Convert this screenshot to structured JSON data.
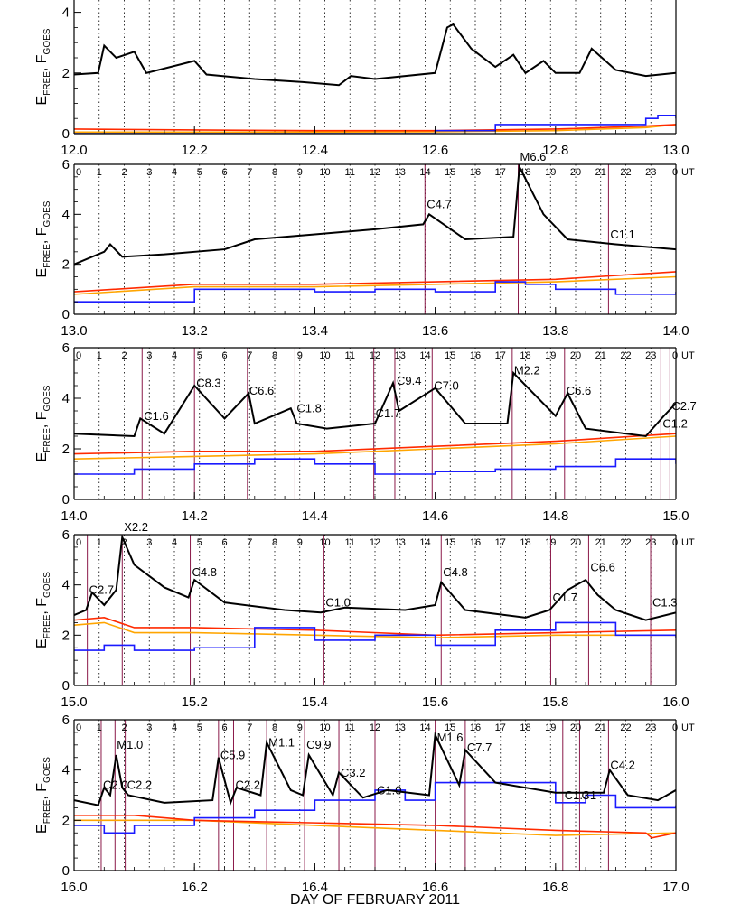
{
  "colors": {
    "efree": "#000000",
    "goes_red": "#ff2a00",
    "goes_orange": "#ffa500",
    "goes_blue": "#1a1aff",
    "flare_line": "#8b1a4a",
    "grid": "#000000"
  },
  "chart_data": [
    {
      "type": "line",
      "xlim": [
        12.0,
        13.0
      ],
      "ylim": [
        0,
        5
      ],
      "ylabel": "E_FREE, F_GOES",
      "xticks": [
        "12.0",
        "12.2",
        "12.4",
        "12.6",
        "12.8",
        "13.0"
      ],
      "yticks": [
        "0",
        "2",
        "4"
      ],
      "hour_labels": [],
      "flares": [],
      "series": [
        {
          "key": "black",
          "x": [
            12.0,
            12.04,
            12.05,
            12.07,
            12.1,
            12.12,
            12.2,
            12.22,
            12.3,
            12.38,
            12.44,
            12.46,
            12.5,
            12.6,
            12.62,
            12.63,
            12.66,
            12.7,
            12.73,
            12.75,
            12.78,
            12.8,
            12.84,
            12.86,
            12.9,
            12.95,
            13.0
          ],
          "values": [
            1.95,
            2.0,
            2.9,
            2.5,
            2.7,
            2.0,
            2.4,
            1.95,
            1.8,
            1.7,
            1.6,
            1.9,
            1.8,
            2.0,
            3.5,
            3.6,
            2.8,
            2.2,
            2.6,
            2.0,
            2.4,
            2.0,
            2.0,
            2.8,
            2.1,
            1.9,
            2.0
          ]
        },
        {
          "key": "red",
          "x": [
            12.0,
            12.2,
            12.4,
            12.6,
            12.8,
            12.95,
            13.0
          ],
          "values": [
            0.15,
            0.12,
            0.1,
            0.1,
            0.15,
            0.25,
            0.3
          ]
        },
        {
          "key": "orange",
          "x": [
            12.0,
            12.2,
            12.4,
            12.6,
            12.8,
            12.95,
            13.0
          ],
          "values": [
            0.05,
            0.05,
            0.05,
            0.06,
            0.1,
            0.2,
            0.3
          ]
        },
        {
          "key": "blue",
          "x": [
            12.0,
            12.2,
            12.4,
            12.6,
            12.7,
            12.8,
            12.95,
            12.97,
            13.0
          ],
          "values": [
            0.0,
            0.0,
            0.0,
            0.1,
            0.3,
            0.3,
            0.5,
            0.6,
            0.5
          ]
        }
      ]
    },
    {
      "type": "line",
      "xlim": [
        13.0,
        14.0
      ],
      "ylim": [
        0,
        6
      ],
      "ylabel": "E_FREE, F_GOES",
      "xticks": [
        "13.0",
        "13.2",
        "13.4",
        "13.6",
        "13.8",
        "14.0"
      ],
      "yticks": [
        "0",
        "2",
        "4",
        "6"
      ],
      "hour_labels": [
        "0",
        "1",
        "2",
        "3",
        "4",
        "5",
        "6",
        "7",
        "8",
        "9",
        "10",
        "11",
        "12",
        "13",
        "14",
        "15",
        "16",
        "17",
        "18",
        "19",
        "20",
        "21",
        "22",
        "23",
        "0"
      ],
      "ut_label": "UT",
      "flares": [
        {
          "x": 13.583,
          "label": "C4.7",
          "ly": 4.1
        },
        {
          "x": 13.738,
          "label": "M6.6",
          "ly": 6.0
        },
        {
          "x": 13.888,
          "label": "C1.1",
          "ly": 2.9
        }
      ],
      "series": [
        {
          "key": "black",
          "x": [
            13.0,
            13.05,
            13.06,
            13.08,
            13.15,
            13.25,
            13.3,
            13.4,
            13.5,
            13.58,
            13.59,
            13.65,
            13.73,
            13.74,
            13.78,
            13.82,
            13.9,
            14.0
          ],
          "values": [
            2.0,
            2.5,
            2.8,
            2.3,
            2.4,
            2.6,
            3.0,
            3.2,
            3.4,
            3.6,
            4.0,
            3.0,
            3.1,
            5.9,
            4.0,
            3.0,
            2.8,
            2.6
          ]
        },
        {
          "key": "red",
          "x": [
            13.0,
            13.2,
            13.4,
            13.6,
            13.8,
            14.0
          ],
          "values": [
            0.9,
            1.2,
            1.2,
            1.3,
            1.4,
            1.7
          ]
        },
        {
          "key": "orange",
          "x": [
            13.0,
            13.2,
            13.4,
            13.6,
            13.8,
            14.0
          ],
          "values": [
            0.8,
            1.1,
            1.1,
            1.2,
            1.3,
            1.5
          ]
        },
        {
          "key": "blue",
          "x": [
            13.0,
            13.1,
            13.2,
            13.3,
            13.4,
            13.5,
            13.6,
            13.7,
            13.75,
            13.8,
            13.9,
            14.0
          ],
          "values": [
            0.5,
            0.5,
            1.0,
            1.0,
            0.9,
            1.0,
            0.9,
            1.3,
            1.2,
            1.0,
            0.8,
            0.9
          ]
        }
      ]
    },
    {
      "type": "line",
      "xlim": [
        14.0,
        15.0
      ],
      "ylim": [
        0,
        6
      ],
      "ylabel": "E_FREE, F_GOES",
      "xticks": [
        "14.0",
        "14.2",
        "14.4",
        "14.6",
        "14.8",
        "15.0"
      ],
      "yticks": [
        "0",
        "2",
        "4",
        "6"
      ],
      "hour_labels": [
        "0",
        "1",
        "2",
        "3",
        "4",
        "5",
        "6",
        "7",
        "8",
        "9",
        "10",
        "11",
        "12",
        "13",
        "14",
        "15",
        "16",
        "17",
        "18",
        "19",
        "20",
        "21",
        "22",
        "23",
        "0"
      ],
      "ut_label": "UT",
      "flares": [
        {
          "x": 14.113,
          "label": "C1.6",
          "ly": 3.0
        },
        {
          "x": 14.2,
          "label": "C8.3",
          "ly": 4.3
        },
        {
          "x": 14.288,
          "label": "C6.6",
          "ly": 4.0
        },
        {
          "x": 14.367,
          "label": "C1.8",
          "ly": 3.3
        },
        {
          "x": 14.498,
          "label": "C1.7",
          "ly": 3.1
        },
        {
          "x": 14.533,
          "label": "C9.4",
          "ly": 4.4
        },
        {
          "x": 14.595,
          "label": "C7.0",
          "ly": 4.2
        },
        {
          "x": 14.728,
          "label": "M2.2",
          "ly": 4.8
        },
        {
          "x": 14.815,
          "label": "C6.6",
          "ly": 4.0
        },
        {
          "x": 14.975,
          "label": "C1.2",
          "ly": 2.7
        },
        {
          "x": 14.99,
          "label": "C2.7",
          "ly": 3.4
        }
      ],
      "series": [
        {
          "key": "black",
          "x": [
            14.0,
            14.1,
            14.11,
            14.15,
            14.2,
            14.25,
            14.29,
            14.3,
            14.36,
            14.37,
            14.42,
            14.5,
            14.53,
            14.54,
            14.6,
            14.65,
            14.72,
            14.73,
            14.8,
            14.82,
            14.85,
            14.95,
            14.98,
            15.0
          ],
          "values": [
            2.6,
            2.5,
            3.2,
            2.6,
            4.5,
            3.2,
            4.2,
            3.0,
            3.6,
            3.0,
            2.8,
            3.0,
            4.6,
            3.5,
            4.4,
            3.0,
            3.0,
            5.0,
            3.3,
            4.2,
            2.8,
            2.5,
            3.3,
            3.8
          ]
        },
        {
          "key": "red",
          "x": [
            14.0,
            14.2,
            14.4,
            14.6,
            14.8,
            15.0
          ],
          "values": [
            1.8,
            1.9,
            1.9,
            2.1,
            2.3,
            2.6
          ]
        },
        {
          "key": "orange",
          "x": [
            14.0,
            14.2,
            14.4,
            14.6,
            14.8,
            15.0
          ],
          "values": [
            1.6,
            1.7,
            1.8,
            2.0,
            2.2,
            2.5
          ]
        },
        {
          "key": "blue",
          "x": [
            14.0,
            14.1,
            14.2,
            14.3,
            14.4,
            14.5,
            14.6,
            14.7,
            14.8,
            14.9,
            15.0
          ],
          "values": [
            1.0,
            1.2,
            1.4,
            1.6,
            1.4,
            1.0,
            1.1,
            1.2,
            1.3,
            1.6,
            1.4
          ]
        }
      ]
    },
    {
      "type": "line",
      "xlim": [
        15.0,
        16.0
      ],
      "ylim": [
        0,
        6
      ],
      "ylabel": "E_FREE, F_GOES",
      "xticks": [
        "15.0",
        "15.2",
        "15.4",
        "15.6",
        "15.8",
        "16.0"
      ],
      "yticks": [
        "0",
        "2",
        "4",
        "6"
      ],
      "hour_labels": [
        "0",
        "1",
        "2",
        "3",
        "4",
        "5",
        "6",
        "7",
        "8",
        "9",
        "10",
        "11",
        "12",
        "13",
        "14",
        "15",
        "16",
        "17",
        "18",
        "19",
        "20",
        "21",
        "22",
        "23",
        "0"
      ],
      "ut_label": "UT",
      "flares": [
        {
          "x": 15.022,
          "label": "C2.7",
          "ly": 3.5
        },
        {
          "x": 15.08,
          "label": "X2.2",
          "ly": 6.0
        },
        {
          "x": 15.193,
          "label": "C4.8",
          "ly": 4.2
        },
        {
          "x": 15.415,
          "label": "C1.0",
          "ly": 3.0
        },
        {
          "x": 15.61,
          "label": "C4.8",
          "ly": 4.2
        },
        {
          "x": 15.792,
          "label": "C1.7",
          "ly": 3.2
        },
        {
          "x": 15.855,
          "label": "C6.6",
          "ly": 4.4
        },
        {
          "x": 15.958,
          "label": "C1.3",
          "ly": 3.0
        }
      ],
      "series": [
        {
          "key": "black",
          "x": [
            15.0,
            15.02,
            15.03,
            15.05,
            15.07,
            15.08,
            15.1,
            15.15,
            15.19,
            15.2,
            15.25,
            15.35,
            15.41,
            15.45,
            15.55,
            15.6,
            15.61,
            15.65,
            15.75,
            15.79,
            15.82,
            15.85,
            15.87,
            15.9,
            15.95,
            16.0
          ],
          "values": [
            2.8,
            3.0,
            3.7,
            3.2,
            3.8,
            5.9,
            4.8,
            3.9,
            3.5,
            4.2,
            3.3,
            3.0,
            2.9,
            3.1,
            3.0,
            3.2,
            4.1,
            3.0,
            2.7,
            3.0,
            3.8,
            4.2,
            3.6,
            3.0,
            2.6,
            2.9
          ]
        },
        {
          "key": "red",
          "x": [
            15.0,
            15.05,
            15.1,
            15.2,
            15.4,
            15.6,
            15.8,
            16.0
          ],
          "values": [
            2.6,
            2.7,
            2.3,
            2.3,
            2.2,
            2.0,
            2.1,
            2.2
          ]
        },
        {
          "key": "orange",
          "x": [
            15.0,
            15.05,
            15.1,
            15.2,
            15.4,
            15.6,
            15.8,
            16.0
          ],
          "values": [
            2.4,
            2.5,
            2.1,
            2.1,
            2.0,
            1.9,
            2.0,
            2.0
          ]
        },
        {
          "key": "blue",
          "x": [
            15.0,
            15.05,
            15.1,
            15.2,
            15.3,
            15.4,
            15.5,
            15.6,
            15.7,
            15.8,
            15.9,
            16.0
          ],
          "values": [
            1.4,
            1.6,
            1.4,
            1.5,
            2.3,
            1.8,
            2.0,
            1.6,
            2.2,
            2.5,
            2.0,
            1.9
          ]
        }
      ]
    },
    {
      "type": "line",
      "xlim": [
        16.0,
        17.0
      ],
      "ylim": [
        0,
        6
      ],
      "ylabel": "E_FREE, F_GOES",
      "xlabel": "DAY OF FEBRUARY 2011",
      "xticks": [
        "16.0",
        "16.2",
        "16.4",
        "16.6",
        "16.8",
        "17.0"
      ],
      "yticks": [
        "0",
        "2",
        "4",
        "6"
      ],
      "hour_labels": [
        "0",
        "1",
        "2",
        "3",
        "4",
        "5",
        "6",
        "7",
        "8",
        "9",
        "10",
        "11",
        "12",
        "13",
        "14",
        "15",
        "16",
        "17",
        "18",
        "19",
        "20",
        "21",
        "22",
        "23",
        "0"
      ],
      "ut_label": "UT",
      "flares": [
        {
          "x": 16.045,
          "label": "C2.0",
          "ly": 3.1
        },
        {
          "x": 16.068,
          "label": "M1.0",
          "ly": 4.7
        },
        {
          "x": 16.085,
          "label": "C2.2",
          "ly": 3.1
        },
        {
          "x": 16.24,
          "label": "C5.9",
          "ly": 4.3
        },
        {
          "x": 16.265,
          "label": "C2.2",
          "ly": 3.1
        },
        {
          "x": 16.32,
          "label": "M1.1",
          "ly": 4.8
        },
        {
          "x": 16.383,
          "label": "C9.9",
          "ly": 4.7
        },
        {
          "x": 16.44,
          "label": "C3.2",
          "ly": 3.6
        },
        {
          "x": 16.5,
          "label": "C1.0",
          "ly": 2.9
        },
        {
          "x": 16.6,
          "label": "M1.6",
          "ly": 5.0
        },
        {
          "x": 16.65,
          "label": "C7.7",
          "ly": 4.6
        },
        {
          "x": 16.812,
          "label": "C1.3",
          "ly": 2.7
        },
        {
          "x": 16.84,
          "label": "C1",
          "ly": 2.7
        },
        {
          "x": 16.888,
          "label": "C4.2",
          "ly": 3.9
        }
      ],
      "series": [
        {
          "key": "black",
          "x": [
            16.0,
            16.04,
            16.05,
            16.06,
            16.07,
            16.08,
            16.09,
            16.15,
            16.23,
            16.24,
            16.26,
            16.27,
            16.31,
            16.32,
            16.36,
            16.38,
            16.39,
            16.43,
            16.44,
            16.48,
            16.52,
            16.59,
            16.6,
            16.64,
            16.65,
            16.7,
            16.8,
            16.88,
            16.89,
            16.92,
            16.97,
            17.0
          ],
          "values": [
            2.8,
            2.6,
            3.3,
            3.0,
            4.6,
            3.3,
            3.0,
            2.7,
            2.8,
            4.5,
            2.7,
            3.3,
            3.0,
            5.1,
            3.2,
            3.0,
            4.6,
            3.0,
            3.9,
            2.9,
            3.2,
            3.0,
            5.4,
            3.4,
            4.8,
            3.5,
            3.1,
            3.1,
            4.0,
            3.0,
            2.8,
            3.2
          ]
        },
        {
          "key": "red",
          "x": [
            16.0,
            16.1,
            16.2,
            16.4,
            16.6,
            16.8,
            16.95,
            16.96,
            17.0
          ],
          "values": [
            2.2,
            2.2,
            2.0,
            1.9,
            1.8,
            1.6,
            1.5,
            1.3,
            1.5
          ]
        },
        {
          "key": "orange",
          "x": [
            16.0,
            16.2,
            16.4,
            16.6,
            16.8,
            17.0
          ],
          "values": [
            2.0,
            2.0,
            1.8,
            1.6,
            1.4,
            1.5
          ]
        },
        {
          "key": "blue",
          "x": [
            16.0,
            16.05,
            16.1,
            16.2,
            16.3,
            16.4,
            16.5,
            16.55,
            16.6,
            16.7,
            16.8,
            16.85,
            16.9,
            17.0
          ],
          "values": [
            1.8,
            1.5,
            1.8,
            2.1,
            2.4,
            2.8,
            3.2,
            2.8,
            3.5,
            3.5,
            2.7,
            3.0,
            2.5,
            2.6
          ]
        }
      ]
    }
  ]
}
